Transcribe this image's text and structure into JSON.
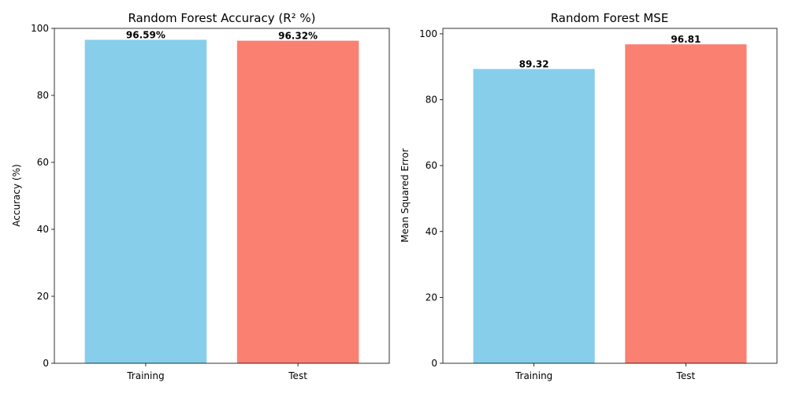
{
  "chart_data": [
    {
      "type": "bar",
      "title": "Random Forest Accuracy (R² %)",
      "xlabel": "",
      "ylabel": "Accuracy (%)",
      "categories": [
        "Training",
        "Test"
      ],
      "values": [
        96.59,
        96.32
      ],
      "value_labels": [
        "96.59%",
        "96.32%"
      ],
      "colors": [
        "#87ceeb",
        "#fa8072"
      ],
      "ylim": [
        0,
        100
      ],
      "yticks": [
        0,
        20,
        40,
        60,
        80,
        100
      ],
      "grid": false,
      "legend": "none"
    },
    {
      "type": "bar",
      "title": "Random Forest MSE",
      "xlabel": "",
      "ylabel": "Mean Squared Error",
      "categories": [
        "Training",
        "Test"
      ],
      "values": [
        89.32,
        96.81
      ],
      "value_labels": [
        "89.32",
        "96.81"
      ],
      "colors": [
        "#87ceeb",
        "#fa8072"
      ],
      "ylim": [
        0,
        101.65
      ],
      "yticks": [
        0,
        20,
        40,
        60,
        80,
        100
      ],
      "grid": false,
      "legend": "none"
    }
  ]
}
